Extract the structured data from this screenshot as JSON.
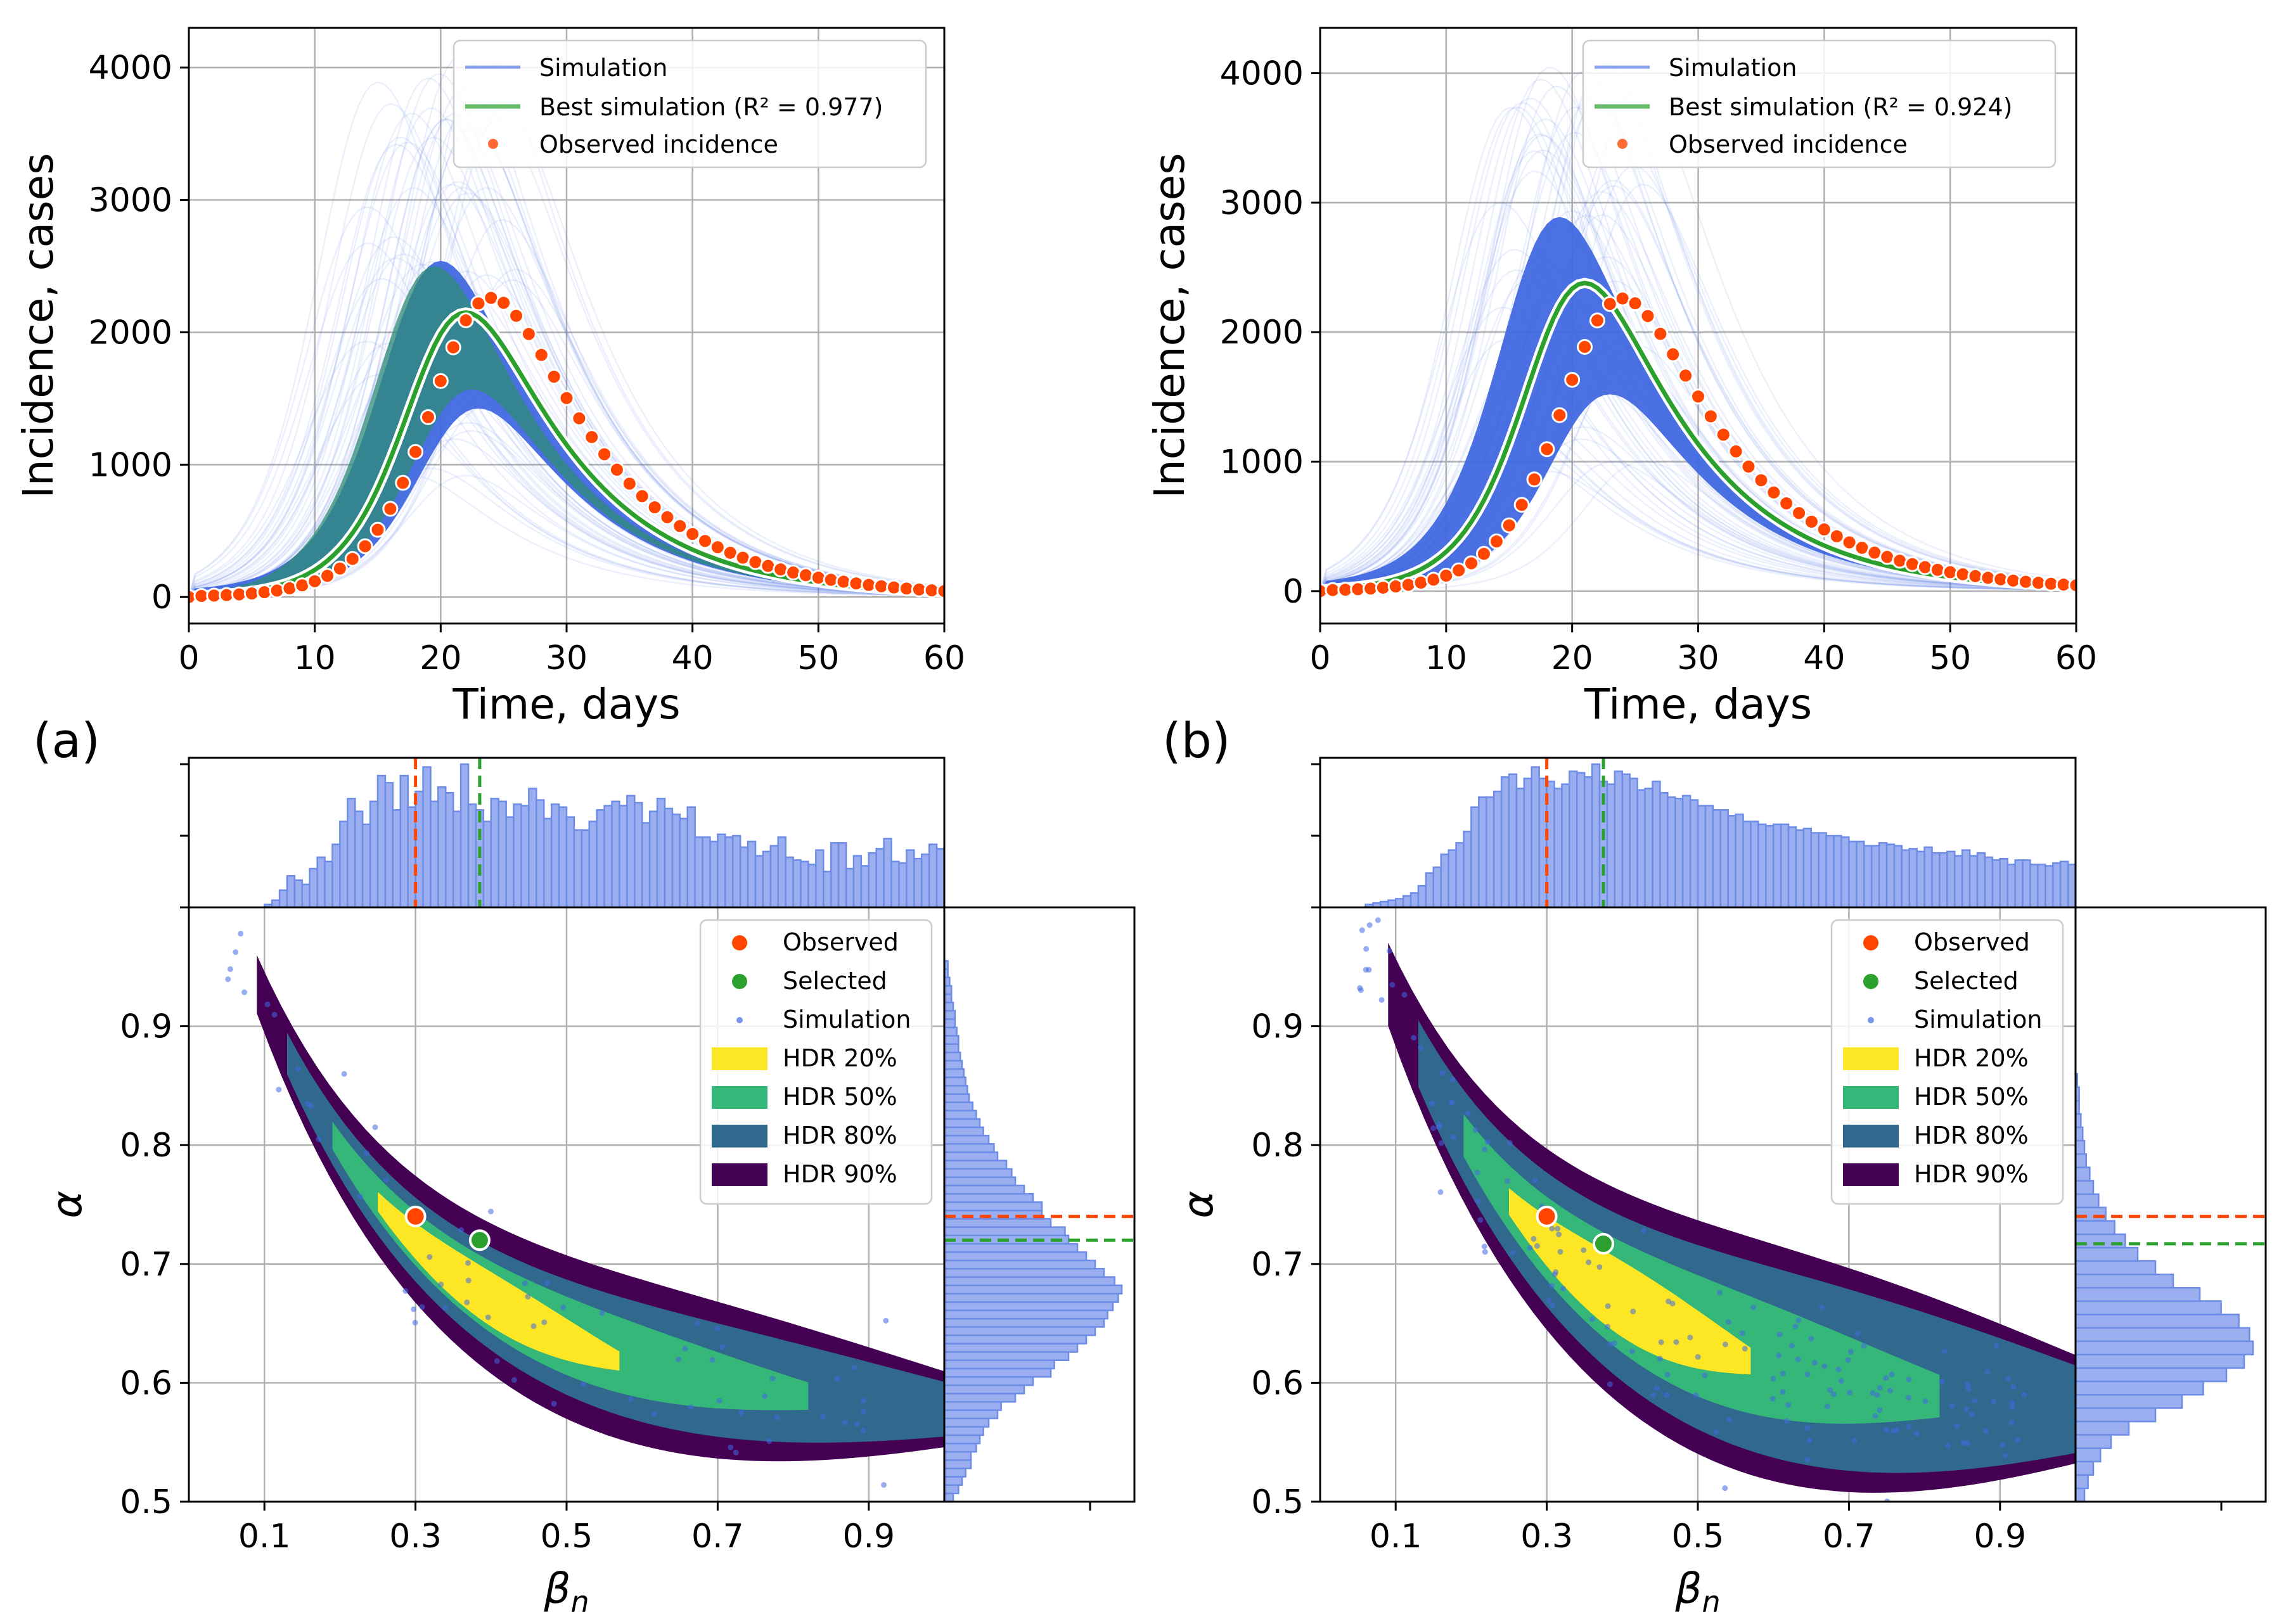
{
  "colors": {
    "simulation": "#4169e1",
    "best": "#2ca02c",
    "observed": "#ff4500",
    "hdr20": "#fde725",
    "hdr50": "#35b779",
    "hdr80": "#31688e",
    "hdr90": "#440154",
    "hist_fill": "#9aaef0",
    "hist_edge": "#6d8ce6"
  },
  "panels": [
    {
      "label": "(a)",
      "incidence": {
        "xlabel": "Time, days",
        "ylabel": "Incidence, cases",
        "xlim": [
          0,
          60
        ],
        "ylim": [
          -200,
          4300
        ],
        "xticks": [
          0,
          10,
          20,
          30,
          40,
          50,
          60
        ],
        "yticks": [
          0,
          1000,
          2000,
          3000,
          4000
        ],
        "legend": {
          "simulation": "Simulation",
          "best": "Best simulation (R² = 0.977)",
          "observed": "Observed incidence"
        },
        "peak": {
          "t": 22,
          "amp": 2200,
          "r": 0.3,
          "d": 0.118,
          "base": 80
        },
        "best_peak": {
          "t": 22,
          "amp": 2150
        },
        "band": {
          "lo_peak": 1500,
          "hi_peak": 2500,
          "hi_t": 20
        }
      },
      "kde": {
        "xlabel": "β_n",
        "ylabel": "α",
        "xlim": [
          0,
          1
        ],
        "ylim": [
          0.5,
          1.0
        ],
        "xticks": [
          0.1,
          0.3,
          0.5,
          0.7,
          0.9
        ],
        "yticks": [
          0.5,
          0.6,
          0.7,
          0.8,
          0.9
        ],
        "observed": {
          "beta": 0.3,
          "alpha": 0.74
        },
        "selected": {
          "beta": 0.385,
          "alpha": 0.72
        },
        "legend": [
          "Observed",
          "Selected",
          "Simulation",
          "HDR 20%",
          "HDR 50%",
          "HDR 80%",
          "HDR 90%"
        ],
        "hist_top": [
          0.0,
          0.0,
          0.0,
          0.0,
          0.0,
          0.0,
          0.0,
          0.0,
          0.0,
          0.0,
          0.02,
          0.05,
          0.12,
          0.22,
          0.19,
          0.16,
          0.27,
          0.35,
          0.32,
          0.44,
          0.6,
          0.76,
          0.67,
          0.58,
          0.74,
          0.92,
          0.87,
          0.68,
          0.92,
          0.7,
          0.81,
          0.98,
          0.74,
          0.84,
          0.8,
          0.67,
          1.0,
          0.72,
          0.68,
          0.6,
          0.76,
          0.74,
          0.63,
          0.72,
          0.71,
          0.83,
          0.75,
          0.62,
          0.72,
          0.7,
          0.63,
          0.54,
          0.54,
          0.6,
          0.68,
          0.71,
          0.74,
          0.71,
          0.78,
          0.73,
          0.59,
          0.67,
          0.76,
          0.69,
          0.65,
          0.62,
          0.7,
          0.49,
          0.49,
          0.46,
          0.51,
          0.49,
          0.5,
          0.42,
          0.46,
          0.36,
          0.39,
          0.43,
          0.49,
          0.35,
          0.33,
          0.32,
          0.3,
          0.4,
          0.25,
          0.45,
          0.45,
          0.27,
          0.36,
          0.29,
          0.38,
          0.41,
          0.48,
          0.32,
          0.31,
          0.4,
          0.34,
          0.37,
          0.44,
          0.41
        ],
        "hist_right": [
          0.05,
          0.08,
          0.1,
          0.12,
          0.15,
          0.15,
          0.18,
          0.2,
          0.22,
          0.25,
          0.3,
          0.32,
          0.4,
          0.45,
          0.5,
          0.6,
          0.62,
          0.7,
          0.75,
          0.8,
          0.85,
          0.9,
          0.92,
          0.95,
          0.98,
          1.0,
          0.96,
          0.9,
          0.85,
          0.8,
          0.75,
          0.7,
          0.68,
          0.6,
          0.55,
          0.55,
          0.5,
          0.45,
          0.4,
          0.38,
          0.35,
          0.3,
          0.28,
          0.25,
          0.22,
          0.2,
          0.18,
          0.16,
          0.14,
          0.13,
          0.12,
          0.11,
          0.1,
          0.09,
          0.08,
          0.08,
          0.07,
          0.06,
          0.06,
          0.05,
          0.04,
          0.04,
          0.03,
          0.02,
          0.02
        ]
      }
    },
    {
      "label": "(b)",
      "incidence": {
        "xlabel": "Time, days",
        "ylabel": "Incidence, cases",
        "xlim": [
          0,
          60
        ],
        "ylim": [
          -250,
          4350
        ],
        "xticks": [
          0,
          10,
          20,
          30,
          40,
          50,
          60
        ],
        "yticks": [
          0,
          1000,
          2000,
          3000,
          4000
        ],
        "legend": {
          "simulation": "Simulation",
          "best": "Best simulation (R² = 0.924)",
          "observed": "Observed incidence"
        },
        "peak": {
          "t": 22,
          "amp": 2200,
          "r": 0.3,
          "d": 0.118,
          "base": 80
        },
        "best_peak": {
          "t": 21,
          "amp": 2380
        },
        "band": {
          "lo_peak": 1600,
          "hi_peak": 2850,
          "hi_t": 19
        }
      },
      "kde": {
        "xlabel": "β_n",
        "ylabel": "α",
        "xlim": [
          0,
          1
        ],
        "ylim": [
          0.5,
          1.0
        ],
        "xticks": [
          0.1,
          0.3,
          0.5,
          0.7,
          0.9
        ],
        "yticks": [
          0.5,
          0.6,
          0.7,
          0.8,
          0.9
        ],
        "observed": {
          "beta": 0.3,
          "alpha": 0.74
        },
        "selected": {
          "beta": 0.375,
          "alpha": 0.717
        },
        "legend": [
          "Observed",
          "Selected",
          "Simulation",
          "HDR 20%",
          "HDR 50%",
          "HDR 80%",
          "HDR 90%"
        ],
        "hist_top": [
          0.0,
          0.0,
          0.0,
          0.0,
          0.0,
          0.0,
          0.02,
          0.03,
          0.04,
          0.05,
          0.06,
          0.08,
          0.1,
          0.15,
          0.24,
          0.28,
          0.37,
          0.4,
          0.45,
          0.53,
          0.7,
          0.77,
          0.77,
          0.81,
          0.91,
          0.93,
          0.83,
          0.9,
          0.98,
          0.9,
          0.88,
          0.83,
          0.86,
          0.95,
          0.94,
          0.91,
          1.0,
          0.88,
          0.86,
          0.95,
          0.93,
          0.9,
          0.82,
          0.83,
          0.88,
          0.8,
          0.77,
          0.76,
          0.78,
          0.75,
          0.71,
          0.71,
          0.68,
          0.68,
          0.64,
          0.65,
          0.6,
          0.6,
          0.58,
          0.57,
          0.58,
          0.58,
          0.56,
          0.54,
          0.55,
          0.52,
          0.52,
          0.5,
          0.5,
          0.49,
          0.46,
          0.46,
          0.43,
          0.43,
          0.45,
          0.44,
          0.43,
          0.4,
          0.41,
          0.39,
          0.42,
          0.38,
          0.38,
          0.39,
          0.36,
          0.4,
          0.36,
          0.38,
          0.35,
          0.33,
          0.34,
          0.3,
          0.33,
          0.33,
          0.3,
          0.3,
          0.29,
          0.31,
          0.32,
          0.3
        ],
        "hist_right": [
          0.05,
          0.07,
          0.1,
          0.14,
          0.2,
          0.3,
          0.45,
          0.6,
          0.72,
          0.85,
          0.95,
          1.0,
          0.98,
          0.92,
          0.82,
          0.7,
          0.55,
          0.45,
          0.35,
          0.28,
          0.22,
          0.17,
          0.13,
          0.1,
          0.08,
          0.06,
          0.05,
          0.04,
          0.03,
          0.02,
          0.02,
          0.01
        ]
      }
    }
  ]
}
